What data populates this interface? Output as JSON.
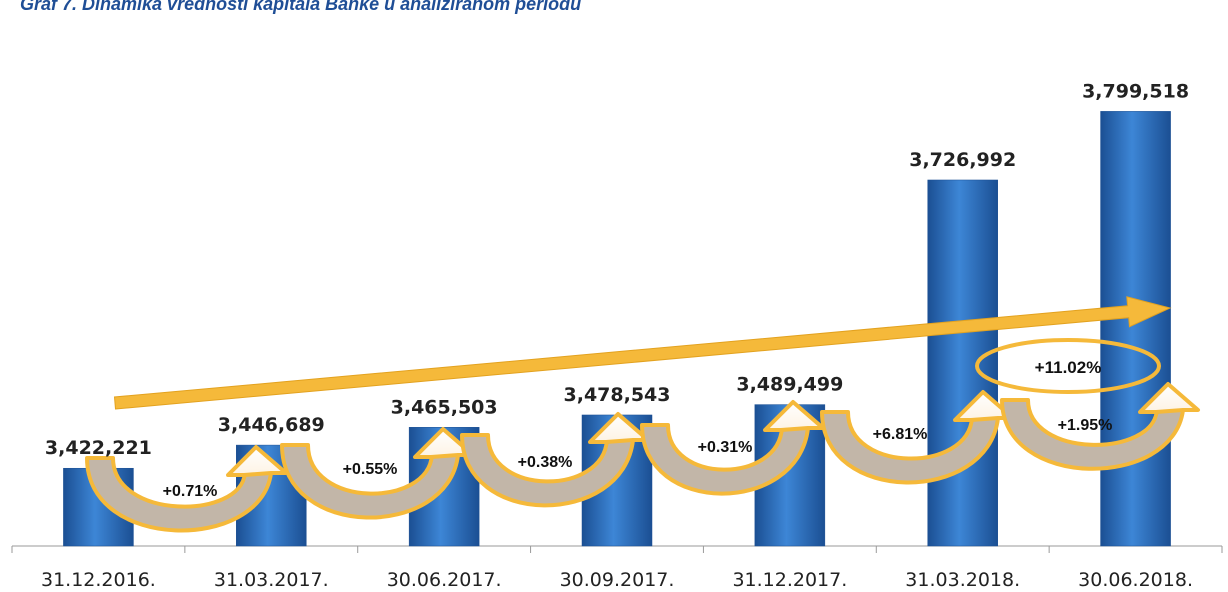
{
  "chart_data": {
    "type": "bar",
    "title": "Graf 7. Dinamika vrednosti kapitala Banke u analiziranom periodu",
    "categories": [
      "31.12.2016.",
      "31.03.2017.",
      "30.06.2017.",
      "30.09.2017.",
      "31.12.2017.",
      "31.03.2018.",
      "30.06.2018."
    ],
    "values": [
      3422221,
      3446689,
      3465503,
      3478543,
      3489499,
      3726992,
      3799518
    ],
    "value_labels": [
      "3,422,221",
      "3,446,689",
      "3,465,503",
      "3,478,543",
      "3,489,499",
      "3,726,992",
      "3,799,518"
    ],
    "changes": [
      "+0.71%",
      "+0.55%",
      "+0.38%",
      "+0.31%",
      "+6.81%",
      "+1.95%"
    ],
    "total_change": "+11.02%",
    "ylim": [
      3340000,
      3820000
    ],
    "grid": false,
    "legend": "none",
    "colors": {
      "bar": "#2e6fbf",
      "bar_dark": "#1b4f93",
      "arrow": "#f5b93a",
      "arrow_inner": "#c2b6a8"
    }
  }
}
